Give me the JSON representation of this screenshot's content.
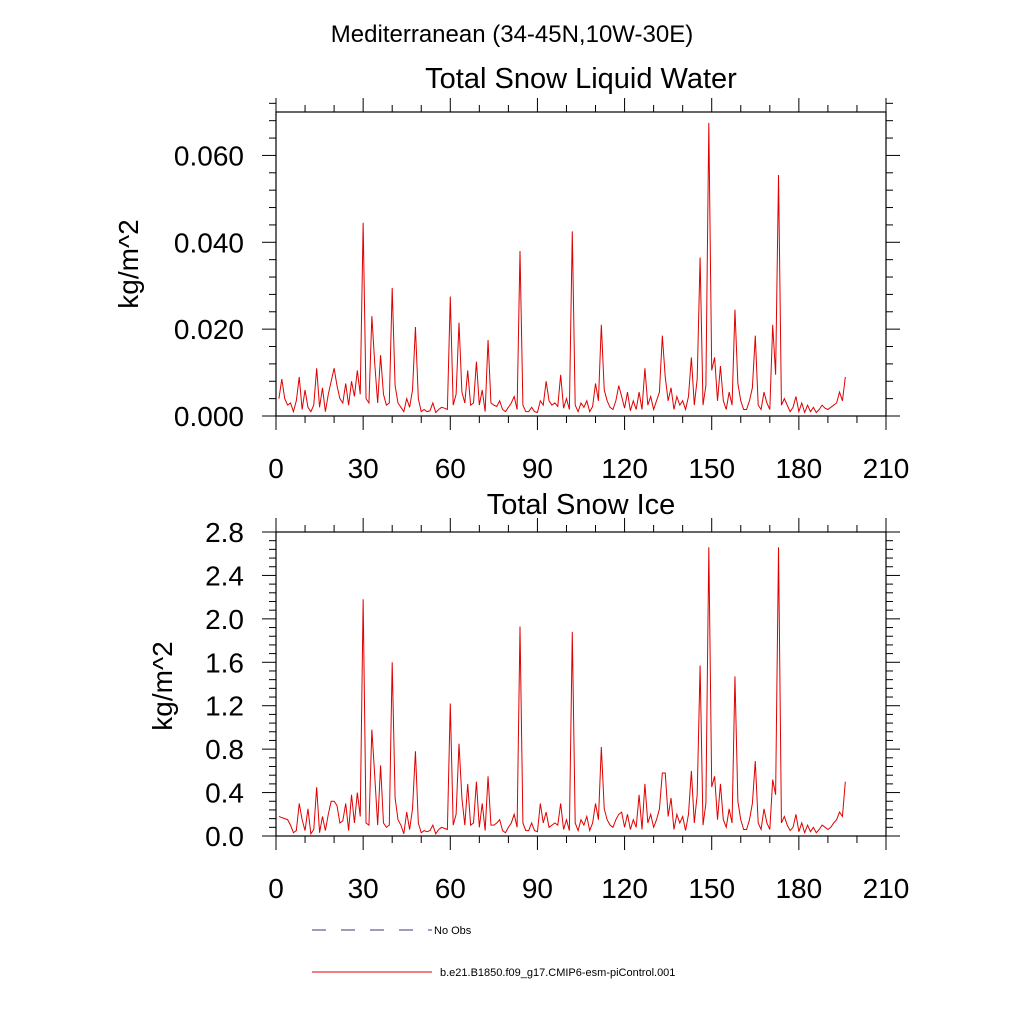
{
  "figure": {
    "suptitle": "Mediterranean (34-45N,10W-30E)"
  },
  "legend": {
    "placement": "bottom",
    "entries": [
      {
        "label": "No Obs",
        "color": "#3a3a7a",
        "style": "dashed"
      },
      {
        "label": "b.e21.B1850.f09_g17.CMIP6-esm-piControl.001",
        "color": "#e00000",
        "style": "solid"
      }
    ]
  },
  "chart_data": [
    {
      "type": "line",
      "title": "Total Snow Liquid Water",
      "xlabel": "",
      "ylabel": "kg/m^2",
      "xlim": [
        0,
        210
      ],
      "ylim": [
        0,
        0.07
      ],
      "xticks": [
        0,
        30,
        60,
        90,
        120,
        150,
        180,
        210
      ],
      "yticks": [
        0.0,
        0.02,
        0.04,
        0.06
      ],
      "ytick_labels": [
        "0.000",
        "0.020",
        "0.040",
        "0.060"
      ],
      "grid": false,
      "series": [
        {
          "name": "b.e21.B1850.f09_g17.CMIP6-esm-piControl.001",
          "color": "#e00000",
          "x_start": 1,
          "x_step": 1,
          "values": [
            0.004,
            0.0085,
            0.004,
            0.0025,
            0.003,
            0.001,
            0.0035,
            0.009,
            0.0015,
            0.006,
            0.002,
            0.001,
            0.0025,
            0.011,
            0.002,
            0.0065,
            0.001,
            0.005,
            0.008,
            0.011,
            0.007,
            0.004,
            0.003,
            0.0075,
            0.0025,
            0.008,
            0.0045,
            0.0105,
            0.005,
            0.0445,
            0.004,
            0.003,
            0.023,
            0.012,
            0.003,
            0.014,
            0.005,
            0.0025,
            0.003,
            0.0295,
            0.007,
            0.003,
            0.002,
            0.001,
            0.004,
            0.002,
            0.006,
            0.0205,
            0.004,
            0.001,
            0.0015,
            0.001,
            0.0012,
            0.003,
            0.0008,
            0.0015,
            0.002,
            0.0018,
            0.0015,
            0.0275,
            0.0025,
            0.005,
            0.0215,
            0.0055,
            0.003,
            0.0105,
            0.0025,
            0.003,
            0.0125,
            0.0025,
            0.006,
            0.001,
            0.0175,
            0.003,
            0.0025,
            0.0022,
            0.0035,
            0.0015,
            0.001,
            0.002,
            0.003,
            0.0045,
            0.0015,
            0.038,
            0.0025,
            0.001,
            0.001,
            0.002,
            0.001,
            0.0008,
            0.0035,
            0.0025,
            0.008,
            0.0035,
            0.0025,
            0.003,
            0.0022,
            0.0095,
            0.0018,
            0.004,
            0.0015,
            0.0425,
            0.0025,
            0.001,
            0.003,
            0.002,
            0.0035,
            0.001,
            0.0022,
            0.0075,
            0.0035,
            0.021,
            0.006,
            0.0035,
            0.002,
            0.0015,
            0.0035,
            0.007,
            0.0045,
            0.0018,
            0.0055,
            0.0012,
            0.0035,
            0.0015,
            0.0055,
            0.0015,
            0.011,
            0.0025,
            0.0045,
            0.0015,
            0.0035,
            0.0055,
            0.0185,
            0.009,
            0.0035,
            0.0065,
            0.0015,
            0.0045,
            0.0025,
            0.0035,
            0.0015,
            0.0045,
            0.0135,
            0.0025,
            0.0085,
            0.0365,
            0.0025,
            0.007,
            0.0675,
            0.0105,
            0.0135,
            0.0035,
            0.0115,
            0.0035,
            0.0015,
            0.0055,
            0.0025,
            0.0245,
            0.0075,
            0.0035,
            0.0015,
            0.0015,
            0.0035,
            0.0065,
            0.0185,
            0.0025,
            0.0015,
            0.0055,
            0.003,
            0.0015,
            0.021,
            0.0095,
            0.0555,
            0.0025,
            0.004,
            0.0025,
            0.001,
            0.002,
            0.0045,
            0.001,
            0.003,
            0.0008,
            0.0025,
            0.001,
            0.002,
            0.0008,
            0.0015,
            0.0025,
            0.0018,
            0.0015,
            0.002,
            0.0025,
            0.003,
            0.0055,
            0.0035,
            0.009
          ]
        }
      ]
    },
    {
      "type": "line",
      "title": "Total Snow Ice",
      "xlabel": "",
      "ylabel": "kg/m^2",
      "xlim": [
        0,
        210
      ],
      "ylim": [
        0,
        2.8
      ],
      "xticks": [
        0,
        30,
        60,
        90,
        120,
        150,
        180,
        210
      ],
      "yticks": [
        0.0,
        0.4,
        0.8,
        1.2,
        1.6,
        2.0,
        2.4,
        2.8
      ],
      "ytick_labels": [
        "0.0",
        "0.4",
        "0.8",
        "1.2",
        "1.6",
        "2.0",
        "2.4",
        "2.8"
      ],
      "grid": false,
      "series": [
        {
          "name": "b.e21.B1850.f09_g17.CMIP6-esm-piControl.001",
          "color": "#e00000",
          "x_start": 1,
          "x_step": 1,
          "values": [
            0.18,
            0.17,
            0.16,
            0.15,
            0.1,
            0.03,
            0.05,
            0.3,
            0.15,
            0.05,
            0.25,
            0.02,
            0.06,
            0.45,
            0.03,
            0.18,
            0.05,
            0.2,
            0.32,
            0.32,
            0.28,
            0.12,
            0.14,
            0.3,
            0.05,
            0.38,
            0.12,
            0.4,
            0.18,
            2.18,
            0.12,
            0.1,
            0.98,
            0.55,
            0.1,
            0.65,
            0.12,
            0.08,
            0.1,
            1.6,
            0.35,
            0.15,
            0.1,
            0.02,
            0.22,
            0.06,
            0.25,
            0.78,
            0.12,
            0.03,
            0.05,
            0.04,
            0.05,
            0.1,
            0.02,
            0.06,
            0.08,
            0.07,
            0.06,
            1.22,
            0.1,
            0.2,
            0.85,
            0.35,
            0.1,
            0.48,
            0.1,
            0.12,
            0.5,
            0.08,
            0.3,
            0.05,
            0.55,
            0.1,
            0.1,
            0.12,
            0.15,
            0.05,
            0.03,
            0.08,
            0.12,
            0.2,
            0.08,
            1.93,
            0.12,
            0.05,
            0.05,
            0.12,
            0.05,
            0.04,
            0.3,
            0.12,
            0.22,
            0.08,
            0.1,
            0.12,
            0.1,
            0.3,
            0.06,
            0.15,
            0.05,
            1.88,
            0.12,
            0.05,
            0.15,
            0.1,
            0.18,
            0.05,
            0.12,
            0.3,
            0.15,
            0.82,
            0.25,
            0.15,
            0.1,
            0.08,
            0.15,
            0.2,
            0.22,
            0.08,
            0.2,
            0.06,
            0.15,
            0.08,
            0.38,
            0.06,
            0.48,
            0.12,
            0.2,
            0.08,
            0.15,
            0.25,
            0.58,
            0.58,
            0.18,
            0.35,
            0.06,
            0.2,
            0.12,
            0.18,
            0.05,
            0.2,
            0.6,
            0.12,
            0.38,
            1.57,
            0.1,
            0.3,
            2.66,
            0.45,
            0.55,
            0.15,
            0.48,
            0.15,
            0.08,
            0.25,
            0.12,
            1.47,
            0.32,
            0.15,
            0.06,
            0.06,
            0.15,
            0.3,
            0.69,
            0.12,
            0.06,
            0.25,
            0.12,
            0.06,
            0.52,
            0.38,
            2.66,
            0.12,
            0.18,
            0.1,
            0.05,
            0.08,
            0.2,
            0.04,
            0.12,
            0.03,
            0.1,
            0.04,
            0.08,
            0.03,
            0.06,
            0.1,
            0.08,
            0.06,
            0.08,
            0.12,
            0.15,
            0.22,
            0.18,
            0.5
          ]
        }
      ]
    }
  ]
}
